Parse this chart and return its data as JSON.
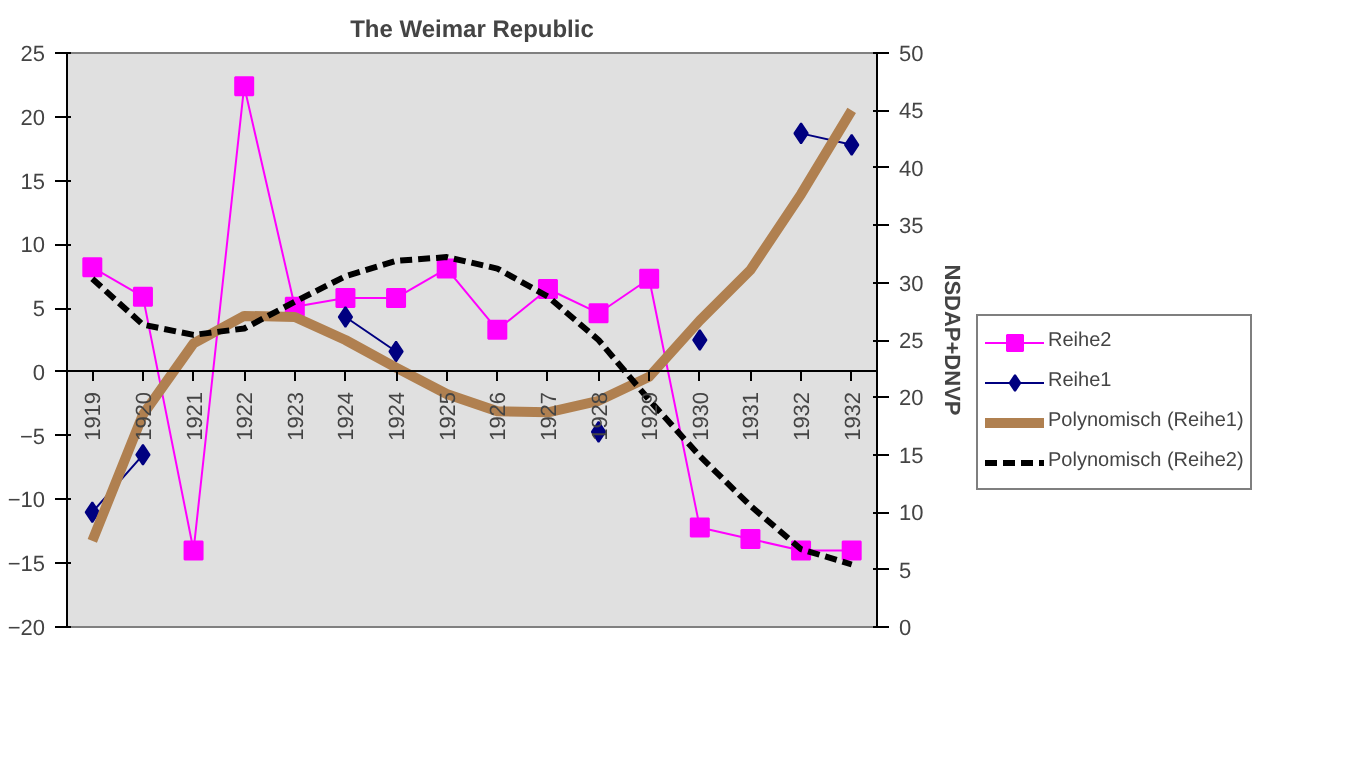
{
  "chart_data": {
    "type": "line",
    "title": "The Weimar Republic",
    "y2label": "NSDAP+DNVP",
    "categories": [
      "1919",
      "1920",
      "1921",
      "1922",
      "1923",
      "1924",
      "1924",
      "1925",
      "1926",
      "1927",
      "1928",
      "1929",
      "1930",
      "1931",
      "1932",
      "1932"
    ],
    "series": [
      {
        "name": "Reihe2",
        "color": "#ff00ff",
        "marker": "square",
        "line_style": "solid",
        "values": [
          8.2,
          5.9,
          -14,
          22.4,
          5.1,
          5.8,
          5.8,
          8.1,
          3.3,
          6.5,
          4.6,
          7.3,
          -12.2,
          -13.1,
          -14.0,
          -14.0
        ]
      },
      {
        "name": "Reihe1",
        "color": "#000080",
        "marker": "diamond",
        "line_style": "solid",
        "axis": "y2",
        "values": [
          10,
          15,
          null,
          null,
          null,
          27,
          24,
          null,
          null,
          null,
          17,
          null,
          25,
          null,
          43,
          42
        ]
      },
      {
        "name": "Polynomisch (Reihe1)",
        "color": "#b08050",
        "marker": "none",
        "line_style": "solid",
        "axis": "y2",
        "values": [
          7.5,
          18.5,
          24.7,
          27.1,
          27.0,
          25,
          22.6,
          20.3,
          18.8,
          18.7,
          19.7,
          21.8,
          26.7,
          31.1,
          37.7,
          45
        ]
      },
      {
        "name": "Polynomisch (Reihe2)",
        "color": "#000000",
        "marker": "none",
        "line_style": "dashed",
        "values": [
          7.3,
          3.7,
          2.9,
          3.4,
          5.5,
          7.5,
          8.7,
          9.0,
          8.1,
          5.9,
          2.5,
          -2.2,
          -6.6,
          -10.5,
          -13.9,
          -15.1
        ]
      }
    ],
    "ylim": [
      -20,
      25
    ],
    "yticks": [
      -20,
      -15,
      -10,
      -5,
      0,
      5,
      10,
      15,
      20,
      25
    ],
    "y2lim": [
      0,
      50
    ],
    "y2ticks": [
      0,
      5,
      10,
      15,
      20,
      25,
      30,
      35,
      40,
      45,
      50
    ],
    "legend": "right"
  }
}
